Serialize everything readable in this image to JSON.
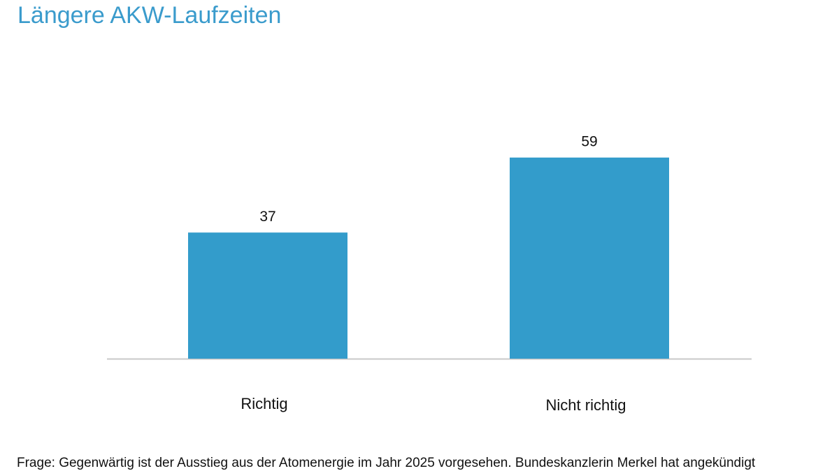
{
  "chart_data": {
    "type": "bar",
    "title": "Längere AKW-Laufzeiten",
    "categories": [
      "Richtig",
      "Nicht richtig"
    ],
    "values": [
      37,
      59
    ],
    "color": "#339ccb",
    "note": "Frage: Gegenwärtig ist der Ausstieg aus der Atomenergie im Jahr 2025 vorgesehen. Bundeskanzlerin Merkel hat angekündigt"
  }
}
